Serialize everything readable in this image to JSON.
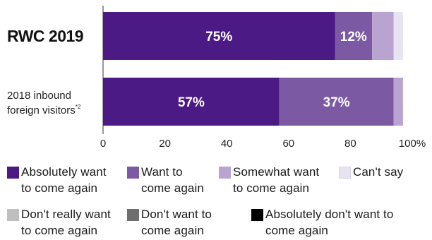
{
  "chart_data": {
    "type": "bar",
    "orientation": "horizontal",
    "stacked": true,
    "title": "",
    "xlabel": "",
    "ylabel": "",
    "xlim": [
      0,
      100
    ],
    "x_ticks": [
      "0",
      "20",
      "40",
      "60",
      "80",
      "100%"
    ],
    "grid": false,
    "legend_position": "bottom",
    "categories": [
      {
        "label": "RWC 2019",
        "bold": true
      },
      {
        "label": "2018 inbound\nforeign visitors",
        "superscript": "*2",
        "bold": false
      }
    ],
    "series": [
      {
        "name": "Absolutely want\nto come again",
        "color": "#4b1a85",
        "values": [
          75,
          57
        ],
        "labels": [
          "75%",
          "57%"
        ]
      },
      {
        "name": "Want to\ncome again",
        "color": "#7b5aa3",
        "values": [
          12,
          37
        ],
        "labels": [
          "12%",
          "37%"
        ]
      },
      {
        "name": "Somewhat want\nto come again",
        "color": "#b8a3d1",
        "values": [
          7,
          3
        ],
        "labels": [
          "",
          ""
        ]
      },
      {
        "name": "Can't say",
        "color": "#e7e3f1",
        "values": [
          3,
          0
        ],
        "labels": [
          "",
          ""
        ]
      },
      {
        "name": "Don't really want\nto come again",
        "color": "#bfbfbf",
        "values": [
          0,
          0
        ],
        "labels": [
          "",
          ""
        ]
      },
      {
        "name": "Don't want to\ncome again",
        "color": "#6e6e6e",
        "values": [
          0,
          0
        ],
        "labels": [
          "",
          ""
        ]
      },
      {
        "name": "Absolutely don't want to\ncome again",
        "color": "#000000",
        "values": [
          0,
          0
        ],
        "labels": [
          "",
          ""
        ]
      }
    ]
  }
}
